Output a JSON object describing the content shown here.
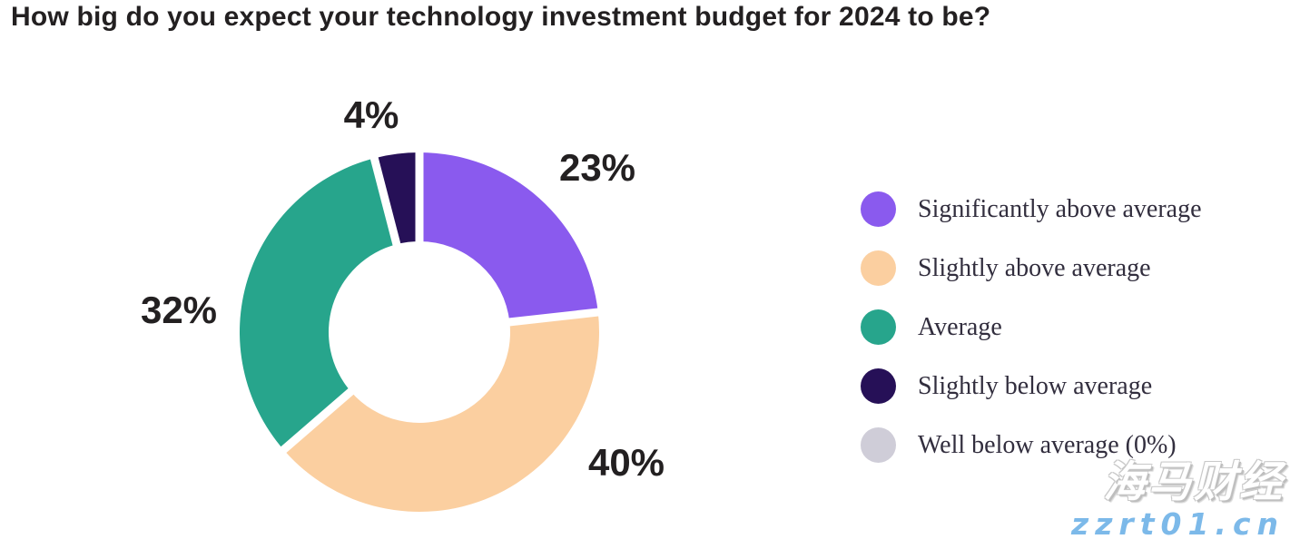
{
  "chart_data": {
    "type": "pie",
    "donut": true,
    "title": "How big do you expect your technology investment budget for 2024 to be?",
    "start_angle_deg": 0,
    "direction": "clockwise",
    "legend_position": "right",
    "slices": [
      {
        "label": "Significantly above average",
        "value": 23,
        "value_label": "23%",
        "color": "#8a5aee"
      },
      {
        "label": "Slightly above average",
        "value": 40,
        "value_label": "40%",
        "color": "#fbcfa0"
      },
      {
        "label": "Average",
        "value": 32,
        "value_label": "32%",
        "color": "#27a58c"
      },
      {
        "label": "Slightly below average",
        "value": 4,
        "value_label": "4%",
        "color": "#261057"
      },
      {
        "label": "Well below average (0%)",
        "value": 0,
        "value_label": "0%",
        "color": "#cfcdd8"
      }
    ]
  },
  "watermark": {
    "line1": "海马财经",
    "line2": "zzrt01.cn",
    "line2_color": "#7cb9e9"
  }
}
